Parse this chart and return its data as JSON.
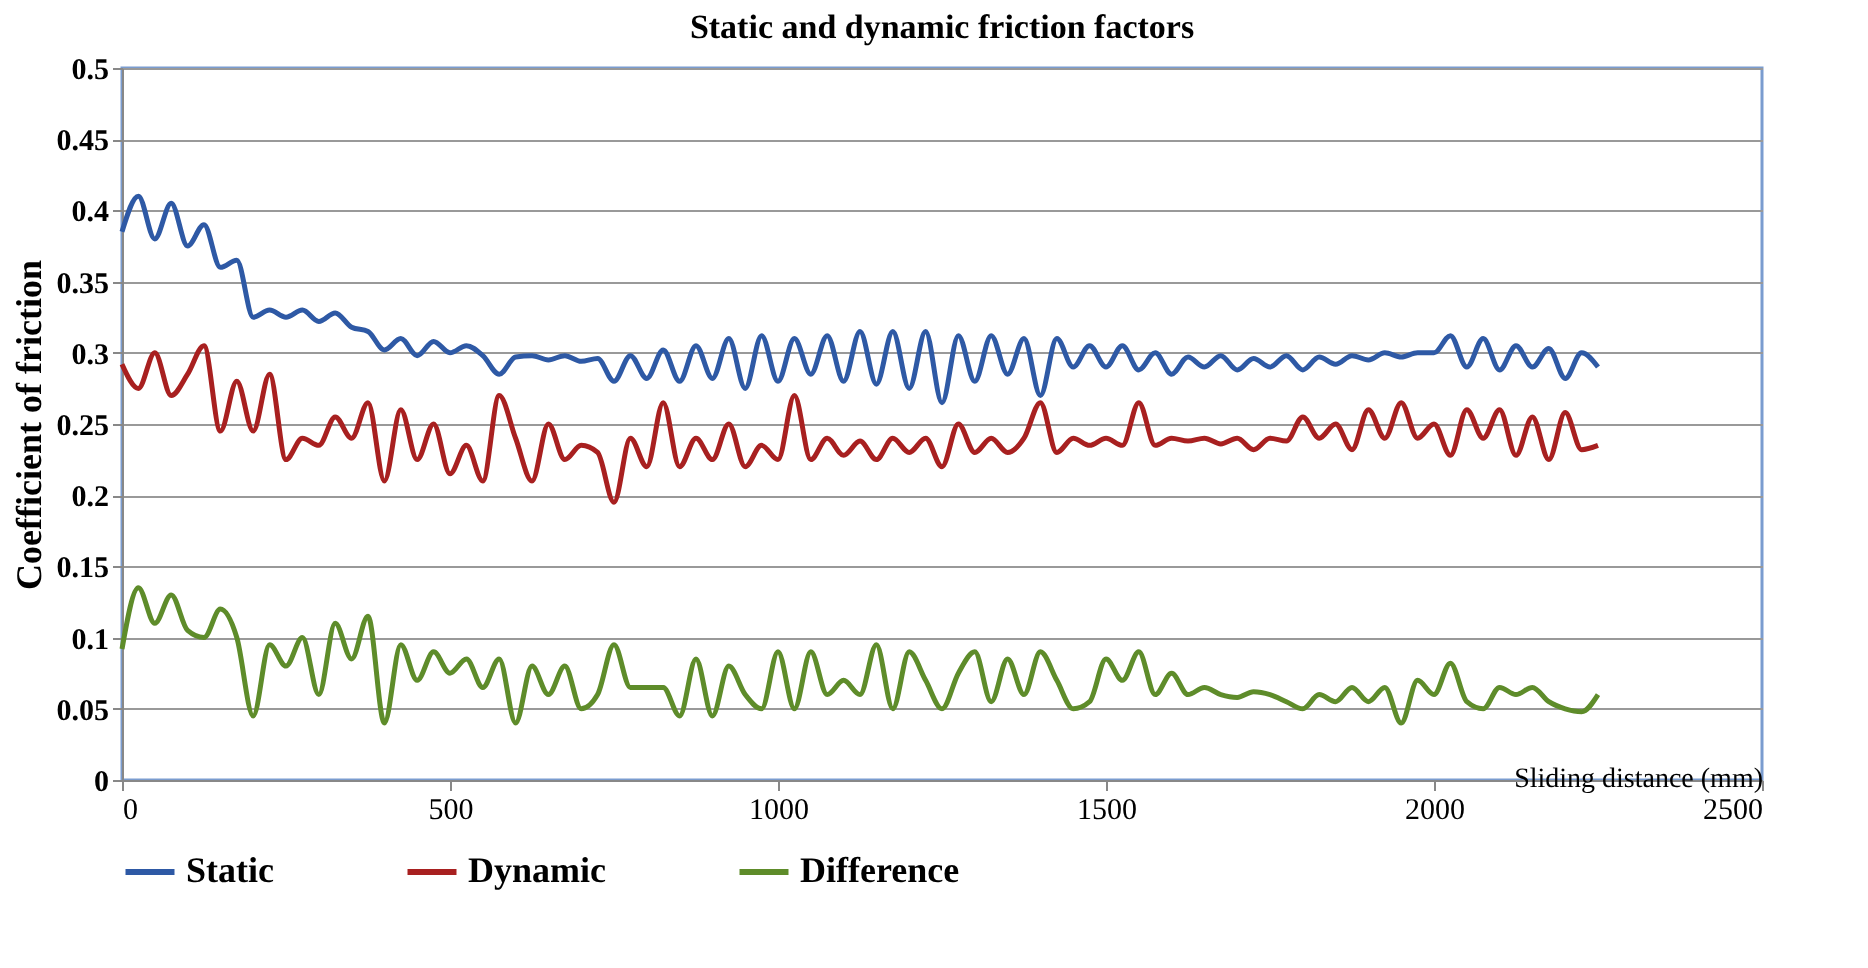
{
  "chart_data": {
    "type": "line",
    "title": "Static and dynamic friction factors",
    "xlabel": "Sliding distance (mm)",
    "ylabel": "Coefficient of friction",
    "x": [
      0,
      25,
      50,
      75,
      100,
      125,
      150,
      175,
      200,
      225,
      250,
      275,
      300,
      325,
      350,
      375,
      400,
      425,
      450,
      475,
      500,
      525,
      550,
      575,
      600,
      625,
      650,
      675,
      700,
      725,
      750,
      775,
      800,
      825,
      850,
      875,
      900,
      925,
      950,
      975,
      1000,
      1025,
      1050,
      1075,
      1100,
      1125,
      1150,
      1175,
      1200,
      1225,
      1250,
      1275,
      1300,
      1325,
      1350,
      1375,
      1400,
      1425,
      1450,
      1475,
      1500,
      1525,
      1550,
      1575,
      1600,
      1625,
      1650,
      1675,
      1700,
      1725,
      1750,
      1775,
      1800,
      1825,
      1850,
      1875,
      1900,
      1925,
      1950,
      1975,
      2000,
      2025,
      2050,
      2075,
      2100,
      2125,
      2150,
      2175,
      2200,
      2225,
      2250
    ],
    "series": [
      {
        "name": "Static",
        "color": "#2e59a5",
        "values": [
          0.385,
          0.41,
          0.38,
          0.405,
          0.375,
          0.39,
          0.36,
          0.365,
          0.325,
          0.33,
          0.325,
          0.33,
          0.322,
          0.328,
          0.318,
          0.315,
          0.302,
          0.31,
          0.298,
          0.308,
          0.3,
          0.305,
          0.298,
          0.285,
          0.297,
          0.298,
          0.295,
          0.298,
          0.294,
          0.296,
          0.28,
          0.298,
          0.282,
          0.302,
          0.28,
          0.305,
          0.282,
          0.31,
          0.275,
          0.312,
          0.28,
          0.31,
          0.285,
          0.312,
          0.28,
          0.315,
          0.278,
          0.315,
          0.275,
          0.315,
          0.265,
          0.312,
          0.28,
          0.312,
          0.285,
          0.31,
          0.27,
          0.31,
          0.29,
          0.305,
          0.29,
          0.305,
          0.288,
          0.3,
          0.285,
          0.297,
          0.29,
          0.298,
          0.288,
          0.296,
          0.29,
          0.298,
          0.288,
          0.297,
          0.292,
          0.298,
          0.295,
          0.3,
          0.297,
          0.3,
          0.3,
          0.312,
          0.29,
          0.31,
          0.288,
          0.305,
          0.29,
          0.303,
          0.282,
          0.3,
          0.29
        ]
      },
      {
        "name": "Dynamic",
        "color": "#a82020",
        "values": [
          0.292,
          0.275,
          0.3,
          0.27,
          0.285,
          0.305,
          0.245,
          0.28,
          0.245,
          0.285,
          0.225,
          0.24,
          0.235,
          0.255,
          0.24,
          0.265,
          0.21,
          0.26,
          0.225,
          0.25,
          0.215,
          0.235,
          0.21,
          0.27,
          0.24,
          0.21,
          0.25,
          0.225,
          0.235,
          0.23,
          0.195,
          0.24,
          0.22,
          0.265,
          0.22,
          0.24,
          0.225,
          0.25,
          0.22,
          0.235,
          0.225,
          0.27,
          0.225,
          0.24,
          0.228,
          0.238,
          0.225,
          0.24,
          0.23,
          0.24,
          0.22,
          0.25,
          0.23,
          0.24,
          0.23,
          0.24,
          0.265,
          0.23,
          0.24,
          0.235,
          0.24,
          0.235,
          0.265,
          0.235,
          0.24,
          0.238,
          0.24,
          0.236,
          0.24,
          0.232,
          0.24,
          0.238,
          0.255,
          0.24,
          0.25,
          0.232,
          0.26,
          0.24,
          0.265,
          0.24,
          0.25,
          0.228,
          0.26,
          0.24,
          0.26,
          0.228,
          0.255,
          0.225,
          0.258,
          0.232,
          0.235
        ]
      },
      {
        "name": "Difference",
        "color": "#5e8c2a",
        "values": [
          0.092,
          0.135,
          0.11,
          0.13,
          0.105,
          0.1,
          0.12,
          0.1,
          0.045,
          0.095,
          0.08,
          0.1,
          0.06,
          0.11,
          0.085,
          0.115,
          0.04,
          0.095,
          0.07,
          0.09,
          0.075,
          0.085,
          0.065,
          0.085,
          0.04,
          0.08,
          0.06,
          0.08,
          0.05,
          0.06,
          0.095,
          0.065,
          0.065,
          0.065,
          0.045,
          0.085,
          0.045,
          0.08,
          0.06,
          0.05,
          0.09,
          0.05,
          0.09,
          0.06,
          0.07,
          0.06,
          0.095,
          0.05,
          0.09,
          0.07,
          0.05,
          0.075,
          0.09,
          0.055,
          0.085,
          0.06,
          0.09,
          0.07,
          0.05,
          0.055,
          0.085,
          0.07,
          0.09,
          0.06,
          0.075,
          0.06,
          0.065,
          0.06,
          0.058,
          0.062,
          0.06,
          0.055,
          0.05,
          0.06,
          0.055,
          0.065,
          0.055,
          0.065,
          0.04,
          0.07,
          0.06,
          0.082,
          0.055,
          0.05,
          0.065,
          0.06,
          0.065,
          0.055,
          0.05,
          0.048,
          0.06
        ]
      }
    ],
    "xlim": [
      0,
      2500
    ],
    "xticks": [
      0,
      500,
      1000,
      1500,
      2000,
      2500
    ],
    "ylim": [
      0,
      0.5
    ],
    "yticks": [
      0,
      0.05,
      0.1,
      0.15,
      0.2,
      0.25,
      0.3,
      0.35,
      0.4,
      0.45,
      0.5
    ],
    "grid": "y",
    "legend": "bottom",
    "marker": "none",
    "line_style": "solid"
  }
}
